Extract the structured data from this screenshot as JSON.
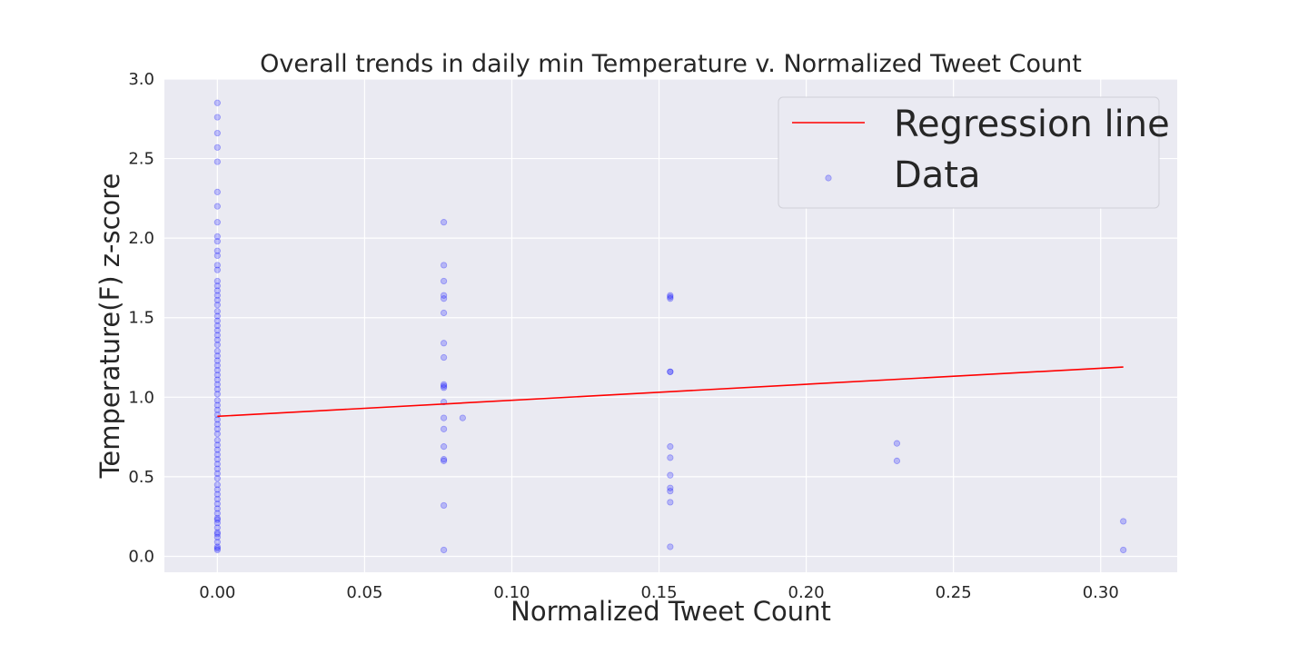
{
  "chart_data": {
    "type": "scatter",
    "title": "Overall trends in daily min Temperature v. Normalized Tweet Count",
    "xlabel": "Normalized Tweet Count",
    "ylabel": "Temperature(F) z-score",
    "xlim": [
      -0.018,
      0.326
    ],
    "ylim": [
      -0.1,
      3.0
    ],
    "xticks": [
      0.0,
      0.05,
      0.1,
      0.15,
      0.2,
      0.25,
      0.3
    ],
    "xtick_labels": [
      "0.00",
      "0.05",
      "0.10",
      "0.15",
      "0.20",
      "0.25",
      "0.30"
    ],
    "yticks": [
      0.0,
      0.5,
      1.0,
      1.5,
      2.0,
      2.5,
      3.0
    ],
    "ytick_labels": [
      "0.0",
      "0.5",
      "1.0",
      "1.5",
      "2.0",
      "2.5",
      "3.0"
    ],
    "grid": true,
    "legend_position": "top-right",
    "colors": {
      "background": "#eaeaf2",
      "grid": "#ffffff",
      "points": "#0000ff",
      "line": "#ff0000",
      "text": "#262626"
    },
    "series": [
      {
        "name": "Regression line",
        "kind": "line",
        "x": [
          0.0,
          0.3077
        ],
        "y": [
          0.88,
          1.19
        ]
      },
      {
        "name": "Data",
        "kind": "scatter",
        "x": [
          0.0,
          0.0,
          0.0,
          0.0,
          0.0,
          0.0,
          0.0,
          0.0,
          0.0,
          0.0,
          0.0,
          0.0,
          0.0,
          0.0,
          0.0,
          0.0,
          0.0,
          0.0,
          0.0,
          0.0,
          0.0,
          0.0,
          0.0,
          0.0,
          0.0,
          0.0,
          0.0,
          0.0,
          0.0,
          0.0,
          0.0,
          0.0,
          0.0,
          0.0,
          0.0,
          0.0,
          0.0,
          0.0,
          0.0,
          0.0,
          0.0,
          0.0,
          0.0,
          0.0,
          0.0,
          0.0,
          0.0,
          0.0,
          0.0,
          0.0,
          0.0,
          0.0,
          0.0,
          0.0,
          0.0,
          0.0,
          0.0,
          0.0,
          0.0,
          0.0,
          0.0,
          0.0,
          0.0,
          0.0,
          0.0,
          0.0,
          0.0,
          0.0,
          0.0,
          0.0,
          0.0,
          0.0,
          0.0,
          0.0769,
          0.0769,
          0.0769,
          0.0769,
          0.0769,
          0.0769,
          0.0769,
          0.0769,
          0.0769,
          0.0769,
          0.0769,
          0.0769,
          0.0769,
          0.0769,
          0.0769,
          0.0769,
          0.0769,
          0.0769,
          0.0769,
          0.0833,
          0.1538,
          0.1538,
          0.1538,
          0.1538,
          0.1538,
          0.1538,
          0.1538,
          0.1538,
          0.1538,
          0.1538,
          0.1538,
          0.1538,
          0.2308,
          0.2308,
          0.3077,
          0.3077
        ],
        "y": [
          2.85,
          2.76,
          2.66,
          2.57,
          2.48,
          2.29,
          2.2,
          2.1,
          2.01,
          1.98,
          1.92,
          1.89,
          1.83,
          1.8,
          1.73,
          1.7,
          1.67,
          1.64,
          1.61,
          1.58,
          1.54,
          1.51,
          1.48,
          1.45,
          1.42,
          1.39,
          1.36,
          1.33,
          1.29,
          1.26,
          1.23,
          1.2,
          1.17,
          1.14,
          1.11,
          1.08,
          1.05,
          1.02,
          0.98,
          0.95,
          0.92,
          0.89,
          0.86,
          0.83,
          0.8,
          0.77,
          0.73,
          0.7,
          0.67,
          0.64,
          0.61,
          0.58,
          0.55,
          0.52,
          0.49,
          0.45,
          0.42,
          0.39,
          0.36,
          0.33,
          0.3,
          0.27,
          0.24,
          0.21,
          0.18,
          0.15,
          0.12,
          0.09,
          0.06,
          0.04,
          0.05,
          0.14,
          0.23,
          2.1,
          1.83,
          1.73,
          1.64,
          1.62,
          1.53,
          1.34,
          1.25,
          1.08,
          1.06,
          0.97,
          0.8,
          0.69,
          0.61,
          0.6,
          0.32,
          0.04,
          0.87,
          1.07,
          0.87,
          1.64,
          1.62,
          1.16,
          1.16,
          0.69,
          0.62,
          0.51,
          0.43,
          0.41,
          0.34,
          0.06,
          1.63,
          0.71,
          0.6,
          0.22,
          0.04
        ]
      }
    ]
  }
}
